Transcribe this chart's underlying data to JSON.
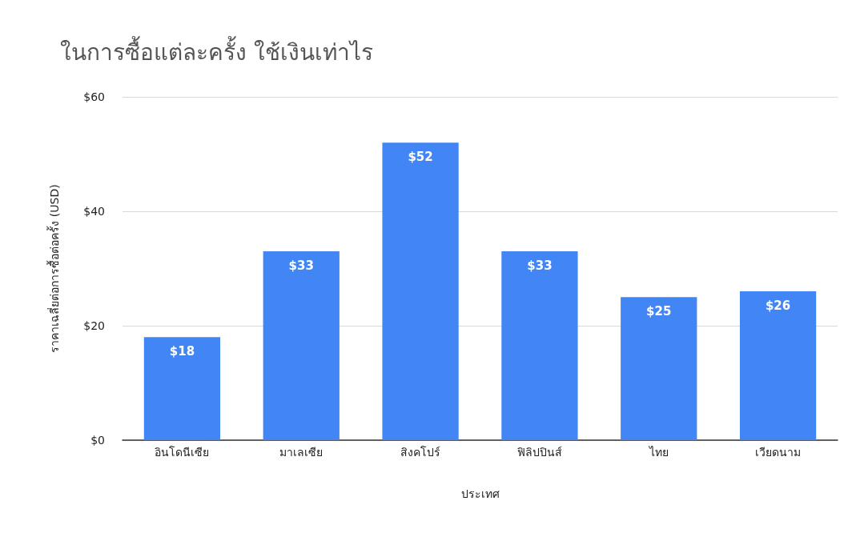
{
  "chart_data": {
    "type": "bar",
    "title": "ในการซื้อแต่ละครั้ง ใช้เงินเท่าไร",
    "xlabel": "ประเทศ",
    "ylabel": "ราคาเฉลี่ยต่อการซื้อต่อครั้ง (USD)",
    "categories": [
      "อินโดนีเซีย",
      "มาเลเซีย",
      "สิงคโปร์",
      "ฟิลิปปินส์",
      "ไทย",
      "เวียดนาม"
    ],
    "values": [
      18,
      33,
      52,
      33,
      25,
      26
    ],
    "value_labels": [
      "$18",
      "$33",
      "$52",
      "$33",
      "$25",
      "$26"
    ],
    "color": "#4285f4",
    "ylim": [
      0,
      60
    ],
    "yticks": [
      {
        "value": 0,
        "label": "$0"
      },
      {
        "value": 20,
        "label": "$20"
      },
      {
        "value": 40,
        "label": "$40"
      },
      {
        "value": 60,
        "label": "$60"
      }
    ],
    "grid": "y"
  }
}
